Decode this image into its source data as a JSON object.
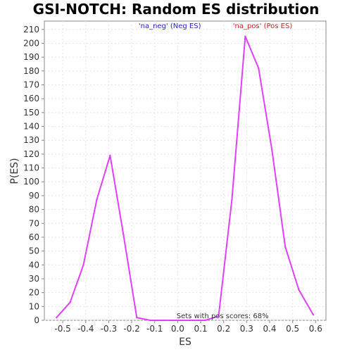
{
  "chart_data": {
    "type": "line",
    "title": "GSI-NOTCH: Random ES distribution",
    "xlabel": "ES",
    "ylabel": "P(ES)",
    "xlim": [
      -0.58,
      0.645
    ],
    "ylim": [
      0,
      216
    ],
    "xticks": [
      -0.5,
      -0.4,
      -0.3,
      -0.2,
      -0.1,
      0.0,
      0.1,
      0.2,
      0.3,
      0.4,
      0.5,
      0.6
    ],
    "xtick_labels": [
      "-0.5",
      "-0.4",
      "-0.3",
      "-0.2",
      "-0.1",
      "0.0",
      "0.1",
      "0.2",
      "0.3",
      "0.4",
      "0.5",
      "0.6"
    ],
    "yticks": [
      0,
      10,
      20,
      30,
      40,
      50,
      60,
      70,
      80,
      90,
      100,
      110,
      120,
      130,
      140,
      150,
      160,
      170,
      180,
      190,
      200,
      210
    ],
    "grid": true,
    "series": [
      {
        "color": "#e040fb",
        "x": [
          -0.527,
          -0.468,
          -0.41,
          -0.352,
          -0.294,
          -0.236,
          -0.178,
          -0.12,
          -0.062,
          0.0,
          0.062,
          0.12,
          0.178,
          0.236,
          0.294,
          0.352,
          0.41,
          0.468,
          0.527,
          0.59
        ],
        "y": [
          2,
          13,
          40,
          87,
          119,
          62,
          2,
          0,
          0,
          0,
          0,
          0,
          3,
          87,
          205,
          182,
          123,
          53,
          22,
          4
        ]
      }
    ],
    "annotations": [
      {
        "text": "'na_neg' (Neg ES)",
        "color": "#2222cc",
        "x": -0.17,
        "y": 211
      },
      {
        "text": "'na_pos' (Pos ES)",
        "color": "#cc2222",
        "x": 0.24,
        "y": 211
      },
      {
        "text": "Sets with pos scores: 68%",
        "color": "#333333",
        "x": -0.005,
        "y": 1.5
      }
    ]
  }
}
